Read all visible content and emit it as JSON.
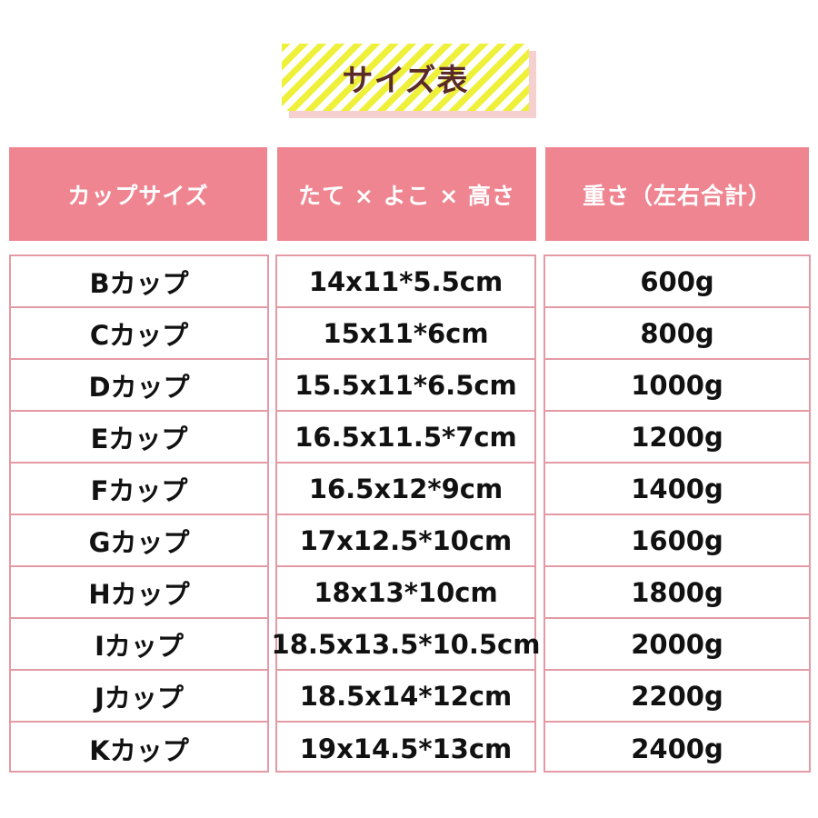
{
  "title": "サイズ表",
  "headers": [
    "カップサイズ",
    "たて × よこ × 高さ",
    "重さ（左右合計）"
  ],
  "rows": [
    {
      "cup": "Bカップ",
      "size": "14x11*5.5cm",
      "weight": "600g"
    },
    {
      "cup": "Cカップ",
      "size": "15x11*6cm",
      "weight": "800g"
    },
    {
      "cup": "Dカップ",
      "size": "15.5x11*6.5cm",
      "weight": "1000g"
    },
    {
      "cup": "Eカップ",
      "size": "16.5x11.5*7cm",
      "weight": "1200g"
    },
    {
      "cup": "Fカップ",
      "size": "16.5x12*9cm",
      "weight": "1400g"
    },
    {
      "cup": "Gカップ",
      "size": "17x12.5*10cm",
      "weight": "1600g"
    },
    {
      "cup": "Hカップ",
      "size": "18x13*10cm",
      "weight": "1800g"
    },
    {
      "cup": "Iカップ",
      "size": "18.5x13.5*10.5cm",
      "weight": "2000g"
    },
    {
      "cup": "Jカップ",
      "size": "18.5x14*12cm",
      "weight": "2200g"
    },
    {
      "cup": "Kカップ",
      "size": "19x14.5*13cm",
      "weight": "2400g"
    }
  ],
  "colors": {
    "header": "#ee8590",
    "border": "#e49aa4",
    "title_stripe": "#eef03a"
  }
}
